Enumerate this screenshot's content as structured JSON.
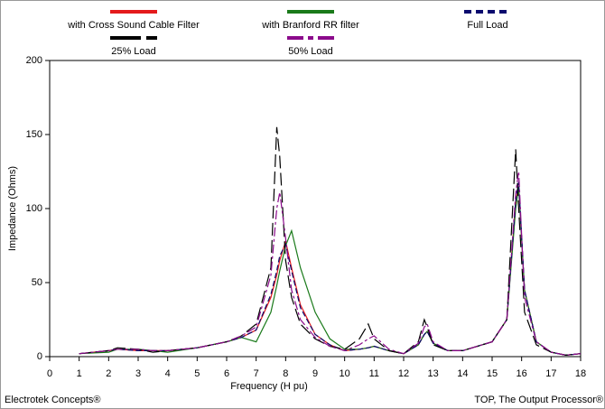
{
  "chart_data": {
    "type": "line",
    "xlabel": "Frequency (H pu)",
    "ylabel": "Impedance (Ohms)",
    "footer_left": "Electrotek Concepts®",
    "footer_right": "TOP, The Output Processor®",
    "x": [
      1,
      2,
      2.3,
      3,
      3.5,
      4,
      5,
      6,
      6.5,
      7,
      7.5,
      7.7,
      7.8,
      8,
      8.2,
      8.5,
      9,
      9.5,
      10,
      10.5,
      10.8,
      11,
      11.5,
      12,
      12.5,
      12.7,
      12.8,
      13,
      13.5,
      14,
      15,
      15.5,
      15.8,
      15.9,
      16.1,
      16.5,
      17,
      17.5,
      18
    ],
    "series": [
      {
        "name": "with Cross Sound Cable Filter",
        "color": "#e41a1c",
        "line_style": "solid",
        "values": [
          2,
          4,
          5,
          4,
          4,
          4,
          6,
          10,
          13,
          18,
          40,
          55,
          65,
          78,
          60,
          35,
          15,
          8,
          4,
          5,
          6,
          7,
          4,
          2,
          8,
          15,
          17,
          9,
          4,
          4,
          10,
          25,
          105,
          115,
          45,
          10,
          3,
          1,
          2
        ]
      },
      {
        "name": "with Branford RR filter",
        "color": "#1a7a1a",
        "line_style": "solid",
        "values": [
          2,
          3,
          5,
          5,
          4,
          3,
          6,
          10,
          13,
          10,
          30,
          48,
          58,
          75,
          85,
          60,
          30,
          12,
          5,
          5,
          6,
          7,
          4,
          2,
          8,
          15,
          17,
          9,
          4,
          4,
          10,
          25,
          100,
          115,
          45,
          10,
          3,
          1,
          2
        ]
      },
      {
        "name": "Full Load",
        "color": "#0a0a6e",
        "line_style": "dashed",
        "values": [
          2,
          4,
          5,
          4,
          4,
          4,
          6,
          10,
          13,
          18,
          42,
          58,
          68,
          76,
          58,
          33,
          15,
          8,
          4,
          5,
          6,
          7,
          4,
          2,
          8,
          15,
          17,
          9,
          4,
          4,
          10,
          25,
          105,
          118,
          45,
          10,
          3,
          1,
          2
        ]
      },
      {
        "name": "25% Load",
        "color": "#000000",
        "line_style": "longdash",
        "values": [
          2,
          4,
          6,
          5,
          3,
          4,
          6,
          10,
          14,
          22,
          60,
          155,
          135,
          65,
          40,
          22,
          12,
          7,
          5,
          12,
          22,
          12,
          4,
          2,
          10,
          25,
          20,
          8,
          4,
          4,
          10,
          25,
          140,
          100,
          30,
          8,
          3,
          1,
          2
        ]
      },
      {
        "name": "50% Load",
        "color": "#8b0a8b",
        "line_style": "dashdot",
        "values": [
          2,
          4,
          5,
          5,
          4,
          4,
          6,
          10,
          14,
          20,
          55,
          100,
          111,
          80,
          45,
          25,
          13,
          7,
          4,
          8,
          12,
          14,
          5,
          2,
          9,
          20,
          22,
          10,
          4,
          4,
          10,
          25,
          110,
          125,
          40,
          10,
          3,
          1,
          2
        ]
      }
    ],
    "xlim": [
      0,
      18
    ],
    "xticks": [
      0,
      1,
      2,
      3,
      4,
      5,
      6,
      7,
      8,
      9,
      10,
      11,
      12,
      13,
      14,
      15,
      16,
      17,
      18
    ],
    "ylim": [
      0,
      200
    ],
    "yticks": [
      0,
      50,
      100,
      150,
      200
    ]
  }
}
